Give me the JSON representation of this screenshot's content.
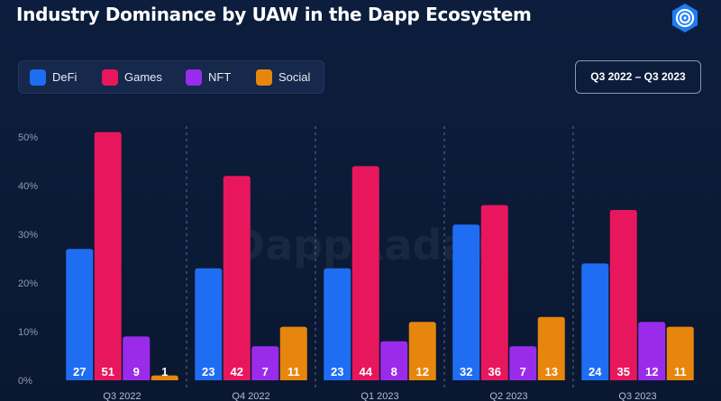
{
  "header": {
    "title": "Industry Dominance by UAW in the Dapp Ecosystem",
    "period": "Q3 2022 – Q3 2023",
    "watermark": "DappRadar"
  },
  "colors": {
    "DeFi": "#1f6df2",
    "Games": "#e8175d",
    "NFT": "#9b2bea",
    "Social": "#e7860d"
  },
  "chart_data": {
    "type": "bar",
    "categories": [
      "Q3 2022",
      "Q4 2022",
      "Q1 2023",
      "Q2 2023",
      "Q3 2023"
    ],
    "series": [
      {
        "name": "DeFi",
        "values": [
          27,
          23,
          23,
          32,
          24
        ]
      },
      {
        "name": "Games",
        "values": [
          51,
          42,
          44,
          36,
          35
        ]
      },
      {
        "name": "NFT",
        "values": [
          9,
          7,
          8,
          7,
          12
        ]
      },
      {
        "name": "Social",
        "values": [
          1,
          11,
          12,
          13,
          11
        ]
      }
    ],
    "ylim": [
      0,
      50
    ],
    "yticks": [
      "0%",
      "10%",
      "20%",
      "30%",
      "40%",
      "50%"
    ],
    "ytick_values": [
      0,
      10,
      20,
      30,
      40,
      50
    ],
    "grid": "vertical dashed separators",
    "legend": "top-left"
  }
}
